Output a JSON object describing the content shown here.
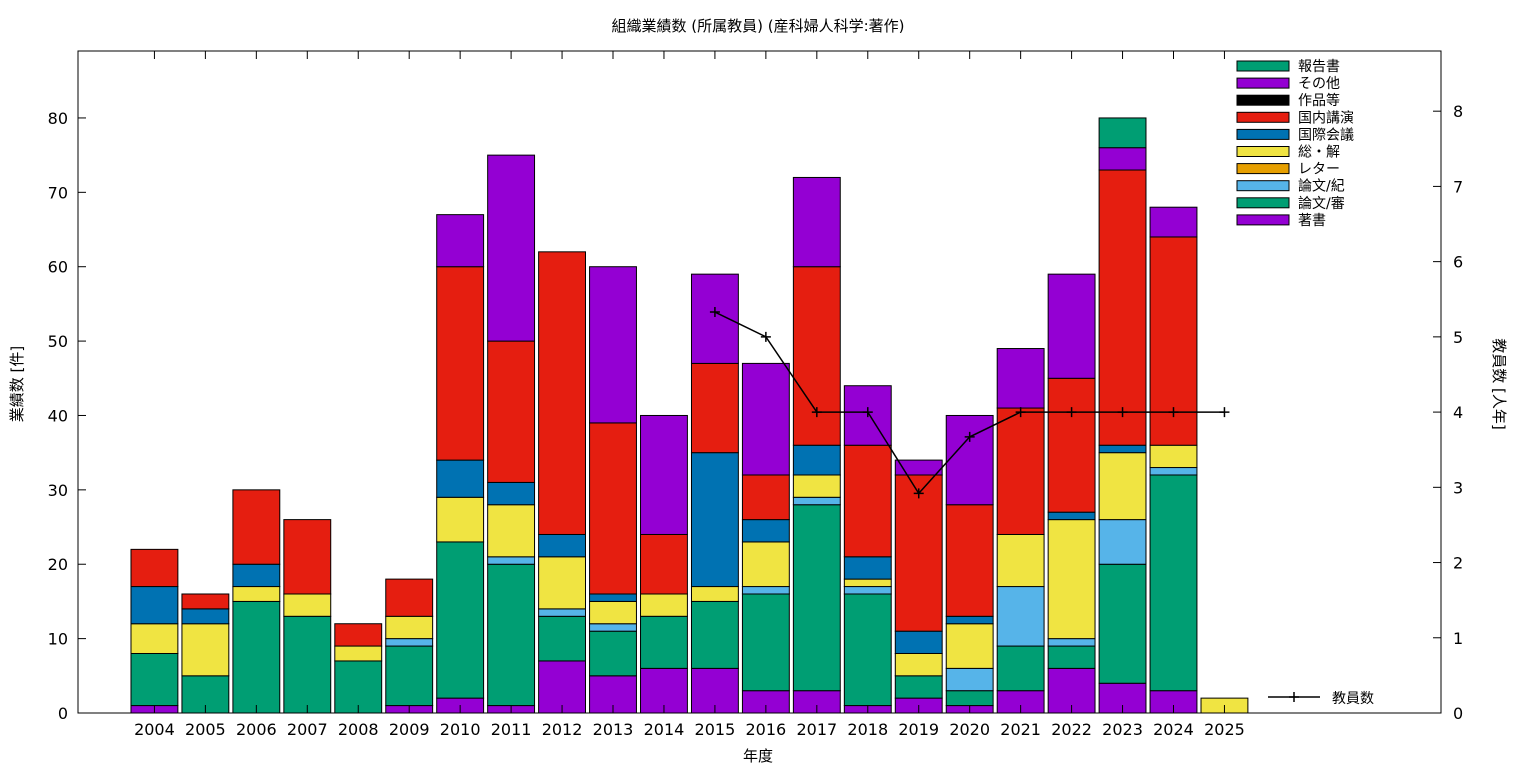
{
  "chart_data": {
    "type": "bar",
    "stacked": true,
    "title": "組織業績数 (所属教員) (産科婦人科学:著作)",
    "xlabel": "年度",
    "ylabel": "業績数 [件]",
    "y2label": "教員数 [人年]",
    "ylim": [
      0,
      89
    ],
    "y2lim": [
      0,
      8.8
    ],
    "yticks": [
      0,
      10,
      20,
      30,
      40,
      50,
      60,
      70,
      80
    ],
    "y2ticks": [
      0,
      1,
      2,
      3,
      4,
      5,
      6,
      7,
      8
    ],
    "grid": false,
    "legend_position": "top-right",
    "categories": [
      "2004",
      "2005",
      "2006",
      "2007",
      "2008",
      "2009",
      "2010",
      "2011",
      "2012",
      "2013",
      "2014",
      "2015",
      "2016",
      "2017",
      "2018",
      "2019",
      "2020",
      "2021",
      "2022",
      "2023",
      "2024",
      "2025"
    ],
    "series": [
      {
        "name": "著書",
        "color": "#9400d3",
        "values": [
          1,
          0,
          0,
          0,
          0,
          1,
          2,
          1,
          7,
          5,
          6,
          6,
          3,
          3,
          1,
          2,
          1,
          3,
          6,
          4,
          3,
          0
        ]
      },
      {
        "name": "論文/審",
        "color": "#009e73",
        "values": [
          7,
          5,
          15,
          13,
          7,
          8,
          21,
          19,
          6,
          6,
          7,
          9,
          13,
          25,
          15,
          3,
          2,
          6,
          3,
          16,
          29,
          0
        ]
      },
      {
        "name": "論文/紀",
        "color": "#56b4e9",
        "values": [
          0,
          0,
          0,
          0,
          0,
          1,
          0,
          1,
          1,
          1,
          0,
          0,
          1,
          1,
          1,
          0,
          3,
          8,
          1,
          6,
          1,
          0
        ]
      },
      {
        "name": "レター",
        "color": "#e69f00",
        "values": [
          0,
          0,
          0,
          0,
          0,
          0,
          0,
          0,
          0,
          0,
          0,
          0,
          0,
          0,
          0,
          0,
          0,
          0,
          0,
          0,
          0,
          0
        ]
      },
      {
        "name": "総・解",
        "color": "#f0e442",
        "values": [
          4,
          7,
          2,
          3,
          2,
          3,
          6,
          7,
          7,
          3,
          3,
          2,
          6,
          3,
          1,
          3,
          6,
          7,
          16,
          9,
          3,
          2
        ]
      },
      {
        "name": "国際会議",
        "color": "#0072b2",
        "values": [
          5,
          2,
          3,
          0,
          0,
          0,
          5,
          3,
          3,
          1,
          0,
          18,
          3,
          4,
          3,
          3,
          1,
          0,
          1,
          1,
          0,
          0
        ]
      },
      {
        "name": "国内講演",
        "color": "#e51e10",
        "values": [
          5,
          2,
          10,
          10,
          3,
          5,
          26,
          19,
          38,
          23,
          8,
          12,
          6,
          24,
          15,
          21,
          15,
          17,
          18,
          37,
          28,
          0
        ]
      },
      {
        "name": "作品等",
        "color": "#000000",
        "values": [
          0,
          0,
          0,
          0,
          0,
          0,
          0,
          0,
          0,
          0,
          0,
          0,
          0,
          0,
          0,
          0,
          0,
          0,
          0,
          0,
          0,
          0
        ]
      },
      {
        "name": "その他",
        "color": "#9400d3",
        "values": [
          0,
          0,
          0,
          0,
          0,
          0,
          7,
          25,
          0,
          21,
          16,
          12,
          15,
          12,
          8,
          2,
          12,
          8,
          14,
          3,
          4,
          0
        ]
      },
      {
        "name": "報告書",
        "color": "#009e73",
        "values": [
          0,
          0,
          0,
          0,
          0,
          0,
          0,
          0,
          0,
          0,
          0,
          0,
          0,
          0,
          0,
          0,
          0,
          0,
          0,
          4,
          0,
          0
        ]
      }
    ],
    "line_series": {
      "name": "教員数",
      "color": "#000000",
      "x": [
        "2015",
        "2016",
        "2017",
        "2018",
        "2019",
        "2020",
        "2021",
        "2022",
        "2023",
        "2024",
        "2025"
      ],
      "values": [
        5.33,
        5.0,
        4.0,
        4.0,
        2.92,
        3.67,
        4.0,
        4.0,
        4.0,
        4.0,
        4.0
      ]
    }
  }
}
